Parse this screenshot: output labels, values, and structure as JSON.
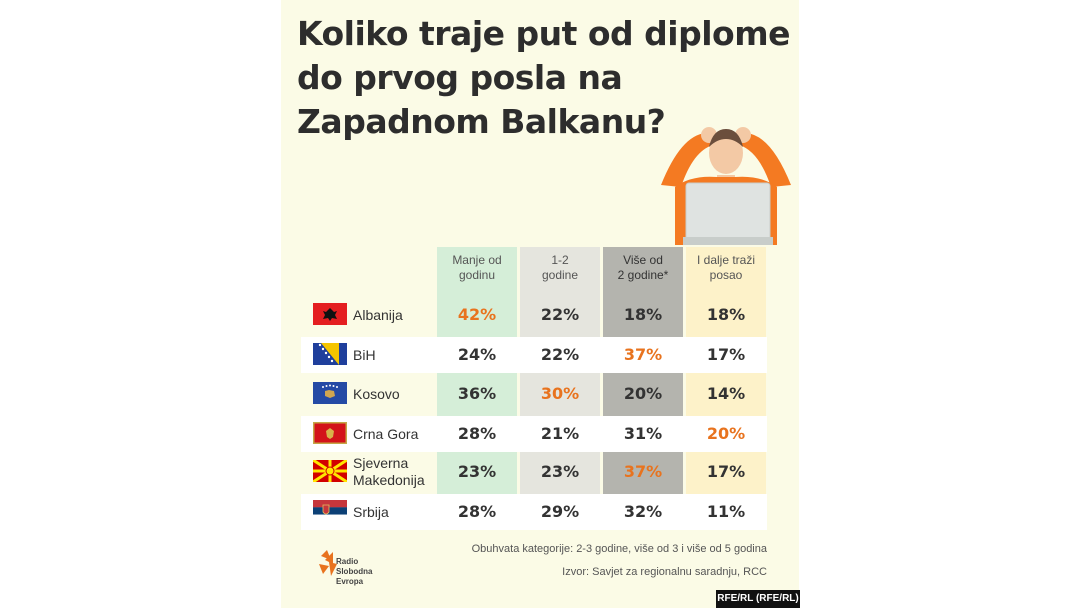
{
  "title": "Koliko traje put od diplome do prvog posla na Zapadnom Balkanu?",
  "colors": {
    "background": "#fbfbe6",
    "col1": "#d5eed8",
    "col2": "#e5e5de",
    "col3": "#b4b4ae",
    "col4": "#fdf2c9",
    "highlight": "#e8731e"
  },
  "chart_data": {
    "type": "table",
    "columns": [
      "Manje od godinu",
      "1-2 godine",
      "Više od 2 godine*",
      "I dalje traži posao"
    ],
    "column_lines": [
      [
        "Manje od",
        "godinu"
      ],
      [
        "1-2",
        "godine"
      ],
      [
        "Više od",
        "2 godine*"
      ],
      [
        "I dalje traži",
        "posao"
      ]
    ],
    "rows": [
      {
        "country": "Albanija",
        "lines": [
          "Albanija"
        ],
        "flag": "albania-flag",
        "values": [
          "42%",
          "22%",
          "18%",
          "18%"
        ],
        "highlight": 0
      },
      {
        "country": "BiH",
        "lines": [
          "BiH"
        ],
        "flag": "bih-flag",
        "values": [
          "24%",
          "22%",
          "37%",
          "17%"
        ],
        "highlight": 2
      },
      {
        "country": "Kosovo",
        "lines": [
          "Kosovo"
        ],
        "flag": "kosovo-flag",
        "values": [
          "36%",
          "30%",
          "20%",
          "14%"
        ],
        "highlight": 1
      },
      {
        "country": "Crna Gora",
        "lines": [
          "Crna Gora"
        ],
        "flag": "montenegro-flag",
        "values": [
          "28%",
          "21%",
          "31%",
          "20%"
        ],
        "highlight": 3
      },
      {
        "country": "Sjeverna Makedonija",
        "lines": [
          "Sjeverna",
          "Makedonija"
        ],
        "flag": "north-macedonia-flag",
        "values": [
          "23%",
          "23%",
          "37%",
          "17%"
        ],
        "highlight": 2
      },
      {
        "country": "Srbija",
        "lines": [
          "Srbija"
        ],
        "flag": "serbia-flag",
        "values": [
          "28%",
          "29%",
          "32%",
          "11%"
        ],
        "highlight": -1
      }
    ]
  },
  "footnote": "Obuhvata kategorije: 2-3 godine, više od 3 i više od 5 godina",
  "source": "Izvor: Savjet za regionalnu saradnju, RCC",
  "logo": {
    "line1": "Radio Slobodna",
    "line2": "Evropa",
    "icon": "rfe-logo-icon"
  },
  "credit": "RFE/RL (RFE/RL)"
}
